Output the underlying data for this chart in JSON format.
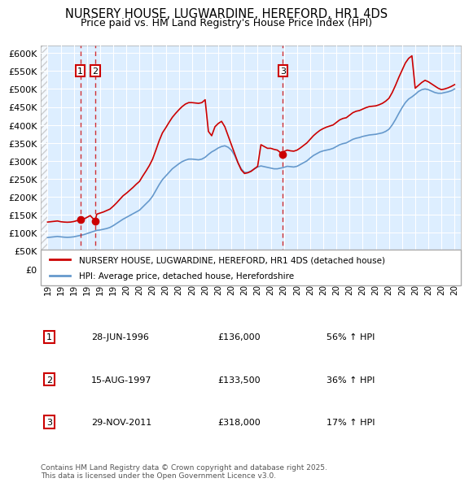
{
  "title": "NURSERY HOUSE, LUGWARDINE, HEREFORD, HR1 4DS",
  "subtitle": "Price paid vs. HM Land Registry's House Price Index (HPI)",
  "legend_property": "NURSERY HOUSE, LUGWARDINE, HEREFORD, HR1 4DS (detached house)",
  "legend_hpi": "HPI: Average price, detached house, Herefordshire",
  "footer": "Contains HM Land Registry data © Crown copyright and database right 2025.\nThis data is licensed under the Open Government Licence v3.0.",
  "sales": [
    {
      "num": 1,
      "date": "28-JUN-1996",
      "price": 136000,
      "pct": "56%",
      "dir": "↑",
      "year": 1996.49
    },
    {
      "num": 2,
      "date": "15-AUG-1997",
      "price": 133500,
      "pct": "36%",
      "dir": "↑",
      "year": 1997.62
    },
    {
      "num": 3,
      "date": "29-NOV-2011",
      "price": 318000,
      "pct": "17%",
      "dir": "↑",
      "year": 2011.91
    }
  ],
  "hpi_data": {
    "years": [
      1994.0,
      1994.25,
      1994.5,
      1994.75,
      1995.0,
      1995.25,
      1995.5,
      1995.75,
      1996.0,
      1996.25,
      1996.5,
      1996.75,
      1997.0,
      1997.25,
      1997.5,
      1997.75,
      1998.0,
      1998.25,
      1998.5,
      1998.75,
      1999.0,
      1999.25,
      1999.5,
      1999.75,
      2000.0,
      2000.25,
      2000.5,
      2000.75,
      2001.0,
      2001.25,
      2001.5,
      2001.75,
      2002.0,
      2002.25,
      2002.5,
      2002.75,
      2003.0,
      2003.25,
      2003.5,
      2003.75,
      2004.0,
      2004.25,
      2004.5,
      2004.75,
      2005.0,
      2005.25,
      2005.5,
      2005.75,
      2006.0,
      2006.25,
      2006.5,
      2006.75,
      2007.0,
      2007.25,
      2007.5,
      2007.75,
      2008.0,
      2008.25,
      2008.5,
      2008.75,
      2009.0,
      2009.25,
      2009.5,
      2009.75,
      2010.0,
      2010.25,
      2010.5,
      2010.75,
      2011.0,
      2011.25,
      2011.5,
      2011.75,
      2012.0,
      2012.25,
      2012.5,
      2012.75,
      2013.0,
      2013.25,
      2013.5,
      2013.75,
      2014.0,
      2014.25,
      2014.5,
      2014.75,
      2015.0,
      2015.25,
      2015.5,
      2015.75,
      2016.0,
      2016.25,
      2016.5,
      2016.75,
      2017.0,
      2017.25,
      2017.5,
      2017.75,
      2018.0,
      2018.25,
      2018.5,
      2018.75,
      2019.0,
      2019.25,
      2019.5,
      2019.75,
      2020.0,
      2020.25,
      2020.5,
      2020.75,
      2021.0,
      2021.25,
      2021.5,
      2021.75,
      2022.0,
      2022.25,
      2022.5,
      2022.75,
      2023.0,
      2023.25,
      2023.5,
      2023.75,
      2024.0,
      2024.25,
      2024.5,
      2024.75,
      2025.0
    ],
    "values": [
      87000,
      88000,
      89000,
      90000,
      89000,
      88000,
      87500,
      88000,
      89000,
      91000,
      93000,
      95000,
      98000,
      101000,
      104000,
      107000,
      108000,
      110000,
      112000,
      115000,
      120000,
      126000,
      132000,
      138000,
      143000,
      148000,
      153000,
      158000,
      163000,
      172000,
      181000,
      190000,
      202000,
      218000,
      234000,
      248000,
      258000,
      268000,
      278000,
      285000,
      292000,
      298000,
      302000,
      305000,
      305000,
      304000,
      303000,
      305000,
      310000,
      318000,
      325000,
      330000,
      336000,
      340000,
      342000,
      338000,
      330000,
      315000,
      295000,
      278000,
      268000,
      268000,
      272000,
      278000,
      283000,
      286000,
      284000,
      282000,
      280000,
      278000,
      278000,
      280000,
      282000,
      285000,
      284000,
      283000,
      285000,
      290000,
      295000,
      300000,
      308000,
      315000,
      320000,
      325000,
      328000,
      330000,
      332000,
      335000,
      340000,
      345000,
      348000,
      350000,
      355000,
      360000,
      363000,
      365000,
      368000,
      370000,
      372000,
      373000,
      374000,
      376000,
      378000,
      382000,
      388000,
      400000,
      415000,
      432000,
      448000,
      462000,
      472000,
      478000,
      485000,
      493000,
      498000,
      500000,
      498000,
      494000,
      490000,
      488000,
      488000,
      490000,
      492000,
      495000,
      500000
    ]
  },
  "property_data": {
    "years": [
      1994.0,
      1994.25,
      1994.5,
      1994.75,
      1995.0,
      1995.25,
      1995.5,
      1995.75,
      1996.0,
      1996.25,
      1996.49,
      1996.75,
      1997.0,
      1997.25,
      1997.62,
      1997.75,
      1998.0,
      1998.25,
      1998.5,
      1998.75,
      1999.0,
      1999.25,
      1999.5,
      1999.75,
      2000.0,
      2000.25,
      2000.5,
      2000.75,
      2001.0,
      2001.25,
      2001.5,
      2001.75,
      2002.0,
      2002.25,
      2002.5,
      2002.75,
      2003.0,
      2003.25,
      2003.5,
      2003.75,
      2004.0,
      2004.25,
      2004.5,
      2004.75,
      2005.0,
      2005.25,
      2005.5,
      2005.75,
      2006.0,
      2006.25,
      2006.5,
      2006.75,
      2007.0,
      2007.25,
      2007.5,
      2007.75,
      2008.0,
      2008.25,
      2008.5,
      2008.75,
      2009.0,
      2009.25,
      2009.5,
      2009.75,
      2010.0,
      2010.25,
      2010.5,
      2010.75,
      2011.0,
      2011.25,
      2011.5,
      2011.91,
      2012.0,
      2012.25,
      2012.5,
      2012.75,
      2013.0,
      2013.25,
      2013.5,
      2013.75,
      2014.0,
      2014.25,
      2014.5,
      2014.75,
      2015.0,
      2015.25,
      2015.5,
      2015.75,
      2016.0,
      2016.25,
      2016.5,
      2016.75,
      2017.0,
      2017.25,
      2017.5,
      2017.75,
      2018.0,
      2018.25,
      2018.5,
      2018.75,
      2019.0,
      2019.25,
      2019.5,
      2019.75,
      2020.0,
      2020.25,
      2020.5,
      2020.75,
      2021.0,
      2021.25,
      2021.5,
      2021.75,
      2022.0,
      2022.25,
      2022.5,
      2022.75,
      2023.0,
      2023.25,
      2023.5,
      2023.75,
      2024.0,
      2024.25,
      2024.5,
      2024.75,
      2025.0
    ],
    "values": [
      130000,
      131000,
      132000,
      133000,
      131000,
      130000,
      129500,
      130000,
      131500,
      134000,
      136000,
      138000,
      143000,
      148000,
      133500,
      152000,
      155000,
      158000,
      162000,
      166000,
      174000,
      183000,
      193000,
      203000,
      210000,
      218000,
      226000,
      235000,
      243000,
      258000,
      272000,
      287000,
      305000,
      330000,
      356000,
      378000,
      392000,
      407000,
      421000,
      432000,
      442000,
      451000,
      458000,
      462000,
      462000,
      461000,
      460000,
      462000,
      470000,
      382000,
      370000,
      395000,
      404000,
      410000,
      395000,
      370000,
      345000,
      320000,
      295000,
      275000,
      265000,
      267000,
      271000,
      278000,
      285000,
      345000,
      340000,
      335000,
      335000,
      332000,
      330000,
      318000,
      326000,
      330000,
      328000,
      327000,
      330000,
      336000,
      343000,
      350000,
      360000,
      370000,
      378000,
      385000,
      390000,
      394000,
      397000,
      400000,
      407000,
      414000,
      418000,
      420000,
      427000,
      434000,
      438000,
      440000,
      444000,
      448000,
      451000,
      452000,
      453000,
      456000,
      460000,
      466000,
      474000,
      490000,
      510000,
      532000,
      552000,
      572000,
      585000,
      592000,
      502000,
      510000,
      518000,
      524000,
      520000,
      514000,
      508000,
      502000,
      498000,
      500000,
      503000,
      507000,
      512000
    ]
  },
  "ylim": [
    0,
    620000
  ],
  "xlim": [
    1993.5,
    2025.5
  ],
  "yticks": [
    0,
    50000,
    100000,
    150000,
    200000,
    250000,
    300000,
    350000,
    400000,
    450000,
    500000,
    550000,
    600000
  ],
  "ytick_labels": [
    "£0",
    "£50K",
    "£100K",
    "£150K",
    "£200K",
    "£250K",
    "£300K",
    "£350K",
    "£400K",
    "£450K",
    "£500K",
    "£550K",
    "£600K"
  ],
  "xticks": [
    1994,
    1995,
    1996,
    1997,
    1998,
    1999,
    2000,
    2001,
    2002,
    2003,
    2004,
    2005,
    2006,
    2007,
    2008,
    2009,
    2010,
    2011,
    2012,
    2013,
    2014,
    2015,
    2016,
    2017,
    2018,
    2019,
    2020,
    2021,
    2022,
    2023,
    2024,
    2025
  ],
  "property_color": "#cc0000",
  "hpi_color": "#6699cc",
  "hatch_color": "#cccccc",
  "bg_color": "#ddeeff",
  "hatch_end_year": 1994.0,
  "grid_color": "#ffffff",
  "sale_box_color": "#cc0000",
  "sale_dot_color": "#cc0000"
}
